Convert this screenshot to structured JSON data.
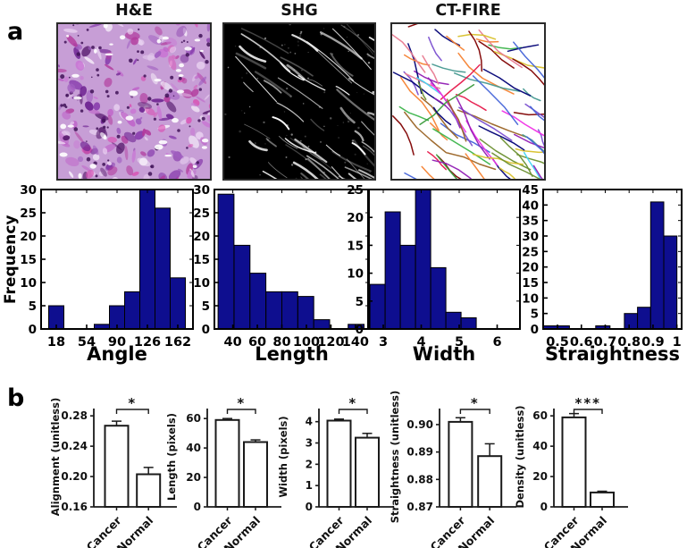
{
  "panel_a": {
    "label": "a",
    "images": [
      {
        "title": "H&E",
        "kind": "histology",
        "palette": [
          "#c79ed6",
          "#a05ec0",
          "#8a3fae",
          "#6d2191",
          "#c977d4",
          "#d94fb3",
          "#b23a9c",
          "#e8d0f0",
          "#f6eefa",
          "#55186b",
          "#bf63c9"
        ],
        "nucleus_color": "#3f1257",
        "speck_color": "#ffffff"
      },
      {
        "title": "SHG",
        "kind": "second-harmonic",
        "background": "#000000",
        "fiber_color": "#ffffff"
      },
      {
        "title": "CT-FIRE",
        "kind": "fiber-tracing",
        "background": "#ffffff",
        "fiber_colors": [
          "#3cb44b",
          "#4363d8",
          "#e6194b",
          "#911eb4",
          "#f58231",
          "#d8c02a",
          "#42d4f4",
          "#f032e6",
          "#469990",
          "#9a6324",
          "#800000",
          "#6a8f2f",
          "#000075",
          "#e87a90",
          "#3a9b3a",
          "#7a4fd0"
        ]
      }
    ]
  },
  "panel_b": {
    "label": "b"
  },
  "chart_data": [
    {
      "id": "hist-angle",
      "type": "bar",
      "subtype": "histogram",
      "xlabel": "Angle",
      "ylabel": "Frequency",
      "xlim": [
        0,
        180
      ],
      "ylim": [
        0,
        30
      ],
      "xticks": [
        18,
        54,
        90,
        126,
        162
      ],
      "xtick_labels": [
        "18",
        "54",
        "90",
        "126",
        "162"
      ],
      "yticks": [
        0,
        5,
        10,
        15,
        20,
        25,
        30
      ],
      "ytick_labels": [
        "0",
        "5",
        "10",
        "15",
        "20",
        "25",
        "30"
      ],
      "bins": [
        [
          9,
          27,
          5
        ],
        [
          63,
          81,
          1
        ],
        [
          81,
          99,
          5
        ],
        [
          99,
          117,
          8
        ],
        [
          117,
          135,
          30
        ],
        [
          135,
          153,
          26
        ],
        [
          153,
          171,
          11
        ]
      ],
      "bar_color": "#0e0e8f",
      "grid": false
    },
    {
      "id": "hist-length",
      "type": "bar",
      "subtype": "histogram",
      "xlabel": "Length",
      "ylabel": "",
      "xlim": [
        25,
        151
      ],
      "ylim": [
        0,
        30
      ],
      "xticks": [
        40,
        60,
        80,
        100,
        120,
        140
      ],
      "xtick_labels": [
        "40",
        "60",
        "80",
        "100",
        "120",
        "140"
      ],
      "yticks": [
        0,
        5,
        10,
        15,
        20,
        25,
        30
      ],
      "ytick_labels": [
        "0",
        "5",
        "10",
        "15",
        "20",
        "25",
        "30"
      ],
      "bins": [
        [
          28,
          41,
          29
        ],
        [
          41,
          54,
          18
        ],
        [
          54,
          67,
          12
        ],
        [
          67,
          80,
          8
        ],
        [
          80,
          93,
          8
        ],
        [
          93,
          106,
          7
        ],
        [
          106,
          119,
          2
        ],
        [
          134,
          147,
          1
        ]
      ],
      "bar_color": "#0e0e8f",
      "grid": false
    },
    {
      "id": "hist-width",
      "type": "bar",
      "subtype": "histogram",
      "xlabel": "Width",
      "ylabel": "",
      "xlim": [
        2.6,
        6.6
      ],
      "ylim": [
        0,
        25
      ],
      "xticks": [
        3,
        4,
        5,
        6
      ],
      "xtick_labels": [
        "3",
        "4",
        "5",
        "6"
      ],
      "yticks": [
        0,
        5,
        10,
        15,
        20,
        25
      ],
      "ytick_labels": [
        "0",
        "5",
        "10",
        "15",
        "20",
        "25"
      ],
      "bins": [
        [
          2.65,
          3.05,
          8
        ],
        [
          3.05,
          3.45,
          21
        ],
        [
          3.45,
          3.85,
          15
        ],
        [
          3.85,
          4.25,
          25
        ],
        [
          4.25,
          4.65,
          11
        ],
        [
          4.65,
          5.05,
          3
        ],
        [
          5.05,
          5.45,
          2
        ]
      ],
      "bar_color": "#0e0e8f",
      "grid": false
    },
    {
      "id": "hist-straightness",
      "type": "bar",
      "subtype": "histogram",
      "xlabel": "Straightness",
      "ylabel": "",
      "xlim": [
        0.44,
        1.02
      ],
      "ylim": [
        0,
        45
      ],
      "xticks": [
        0.5,
        0.6,
        0.7,
        0.8,
        0.9,
        1
      ],
      "xtick_labels": [
        "0.5",
        "0.6",
        "0.7",
        "0.8",
        "0.9",
        "1"
      ],
      "yticks": [
        0,
        5,
        10,
        15,
        20,
        25,
        30,
        35,
        40,
        45
      ],
      "ytick_labels": [
        "0",
        "5",
        "10",
        "15",
        "20",
        "25",
        "30",
        "35",
        "40",
        "45"
      ],
      "bins": [
        [
          0.44,
          0.55,
          1
        ],
        [
          0.66,
          0.72,
          1
        ],
        [
          0.78,
          0.835,
          5
        ],
        [
          0.835,
          0.89,
          7
        ],
        [
          0.89,
          0.945,
          41
        ],
        [
          0.945,
          1.0,
          30
        ]
      ],
      "bar_color": "#0e0e8f",
      "grid": false
    },
    {
      "id": "bar-alignment",
      "type": "bar",
      "subtype": "group-comparison",
      "ylabel": "Alignment (unitless)",
      "categories": [
        "Cancer",
        "Normal"
      ],
      "values": [
        0.267,
        0.203
      ],
      "errors": [
        0.006,
        0.009
      ],
      "ylim": [
        0.16,
        0.292
      ],
      "yticks": [
        0.16,
        0.2,
        0.24,
        0.28
      ],
      "ytick_labels": [
        "0.16",
        "0.20",
        "0.24",
        "0.28"
      ],
      "significance": "*",
      "bar_fill": "#ffffff",
      "bar_stroke": "#1a1a1a"
    },
    {
      "id": "bar-length",
      "type": "bar",
      "subtype": "group-comparison",
      "ylabel": "Length (pixels)",
      "categories": [
        "Cancer",
        "Normal"
      ],
      "values": [
        59,
        44
      ],
      "errors": [
        1,
        1.5
      ],
      "ylim": [
        0,
        68
      ],
      "yticks": [
        0,
        20,
        40,
        60
      ],
      "ytick_labels": [
        "0",
        "20",
        "40",
        "60"
      ],
      "significance": "*",
      "bar_fill": "#ffffff",
      "bar_stroke": "#1a1a1a"
    },
    {
      "id": "bar-width",
      "type": "bar",
      "subtype": "group-comparison",
      "ylabel": "Width (pixels)",
      "categories": [
        "Cancer",
        "Normal"
      ],
      "values": [
        4.05,
        3.25
      ],
      "errors": [
        0.07,
        0.2
      ],
      "ylim": [
        0,
        4.7
      ],
      "yticks": [
        0,
        1,
        2,
        3,
        4
      ],
      "ytick_labels": [
        "0",
        "1",
        "2",
        "3",
        "4"
      ],
      "significance": "*",
      "bar_fill": "#ffffff",
      "bar_stroke": "#1a1a1a"
    },
    {
      "id": "bar-straightness",
      "type": "bar",
      "subtype": "group-comparison",
      "ylabel": "Straightness (unitless)",
      "categories": [
        "Cancer",
        "Normal"
      ],
      "values": [
        0.901,
        0.8885
      ],
      "errors": [
        0.0015,
        0.0045
      ],
      "ylim": [
        0.87,
        0.9065
      ],
      "yticks": [
        0.87,
        0.88,
        0.89,
        0.9
      ],
      "ytick_labels": [
        "0.87",
        "0.88",
        "0.89",
        "0.90"
      ],
      "significance": "*",
      "bar_fill": "#ffffff",
      "bar_stroke": "#1a1a1a"
    },
    {
      "id": "bar-density",
      "type": "bar",
      "subtype": "group-comparison",
      "ylabel": "Density (unitless)",
      "categories": [
        "Cancer",
        "Normal"
      ],
      "values": [
        59,
        9.5
      ],
      "errors": [
        2.5,
        0.8
      ],
      "ylim": [
        0,
        66
      ],
      "yticks": [
        0,
        20,
        40,
        60
      ],
      "ytick_labels": [
        "0",
        "20",
        "40",
        "60"
      ],
      "significance": "***",
      "bar_fill": "#ffffff",
      "bar_stroke": "#1a1a1a"
    }
  ]
}
